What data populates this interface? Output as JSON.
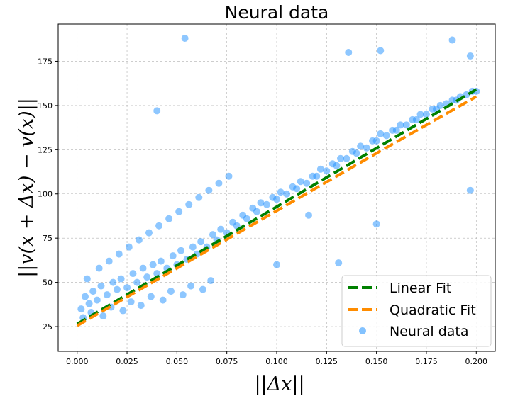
{
  "chart_data": {
    "type": "scatter",
    "title": "Neural data",
    "xlabel": "||Δx||",
    "ylabel": "||v(x + Δx) − v(x)||",
    "xlim": [
      -0.0095,
      0.2095
    ],
    "ylim": [
      11,
      196
    ],
    "xticks": [
      0.0,
      0.025,
      0.05,
      0.075,
      0.1,
      0.125,
      0.15,
      0.175,
      0.2
    ],
    "xtick_labels": [
      "0.000",
      "0.025",
      "0.050",
      "0.075",
      "0.100",
      "0.125",
      "0.150",
      "0.175",
      "0.200"
    ],
    "yticks": [
      25,
      50,
      75,
      100,
      125,
      150,
      175
    ],
    "ytick_labels": [
      "25",
      "50",
      "75",
      "100",
      "125",
      "150",
      "175"
    ],
    "grid": true,
    "legend_position": "bottom-right",
    "series": [
      {
        "name": "Linear Fit",
        "kind": "line",
        "style": "dashed",
        "color": "#008000",
        "x": [
          0.0,
          0.2
        ],
        "y": [
          26.5,
          159
        ]
      },
      {
        "name": "Quadratic Fit",
        "kind": "line",
        "style": "dashed",
        "color": "#ff8c00",
        "x": [
          0.0,
          0.05,
          0.1,
          0.15,
          0.2
        ],
        "y": [
          25.5,
          58,
          90.5,
          123,
          155
        ]
      },
      {
        "name": "Neural data",
        "kind": "scatter",
        "color": "#1e90ff",
        "x": [
          0.002,
          0.004,
          0.006,
          0.008,
          0.01,
          0.012,
          0.015,
          0.018,
          0.02,
          0.022,
          0.025,
          0.028,
          0.03,
          0.033,
          0.035,
          0.038,
          0.04,
          0.042,
          0.045,
          0.048,
          0.05,
          0.052,
          0.055,
          0.058,
          0.06,
          0.062,
          0.065,
          0.068,
          0.07,
          0.072,
          0.075,
          0.078,
          0.08,
          0.083,
          0.085,
          0.088,
          0.09,
          0.092,
          0.095,
          0.098,
          0.1,
          0.102,
          0.105,
          0.108,
          0.11,
          0.112,
          0.115,
          0.118,
          0.12,
          0.122,
          0.125,
          0.128,
          0.13,
          0.132,
          0.135,
          0.138,
          0.14,
          0.142,
          0.145,
          0.148,
          0.15,
          0.152,
          0.155,
          0.158,
          0.16,
          0.162,
          0.165,
          0.168,
          0.17,
          0.172,
          0.175,
          0.178,
          0.18,
          0.182,
          0.185,
          0.188,
          0.19,
          0.192,
          0.195,
          0.198,
          0.2,
          0.003,
          0.007,
          0.013,
          0.017,
          0.023,
          0.027,
          0.032,
          0.037,
          0.043,
          0.047,
          0.053,
          0.057,
          0.063,
          0.067,
          0.005,
          0.011,
          0.016,
          0.021,
          0.026,
          0.031,
          0.036,
          0.041,
          0.046,
          0.051,
          0.056,
          0.061,
          0.066,
          0.071,
          0.076,
          0.054,
          0.136,
          0.152,
          0.188,
          0.197,
          0.131,
          0.197,
          0.04,
          0.1,
          0.116,
          0.15
        ],
        "y": [
          35,
          42,
          38,
          45,
          40,
          48,
          43,
          50,
          46,
          52,
          47,
          55,
          50,
          58,
          53,
          60,
          55,
          62,
          58,
          65,
          60,
          68,
          63,
          70,
          66,
          73,
          70,
          77,
          74,
          80,
          78,
          84,
          82,
          88,
          86,
          92,
          90,
          95,
          94,
          98,
          97,
          101,
          100,
          104,
          103,
          107,
          106,
          110,
          110,
          114,
          113,
          117,
          116,
          120,
          120,
          124,
          123,
          127,
          126,
          130,
          130,
          134,
          133,
          136,
          136,
          139,
          139,
          142,
          142,
          145,
          145,
          148,
          148,
          150,
          151,
          153,
          153,
          155,
          156,
          158,
          158,
          30,
          33,
          31,
          36,
          34,
          39,
          37,
          42,
          40,
          45,
          43,
          48,
          46,
          51,
          52,
          58,
          62,
          66,
          70,
          74,
          78,
          82,
          86,
          90,
          94,
          98,
          102,
          106,
          110,
          188,
          180,
          181,
          187,
          178,
          61,
          102,
          147,
          60,
          88,
          83
        ]
      }
    ]
  }
}
